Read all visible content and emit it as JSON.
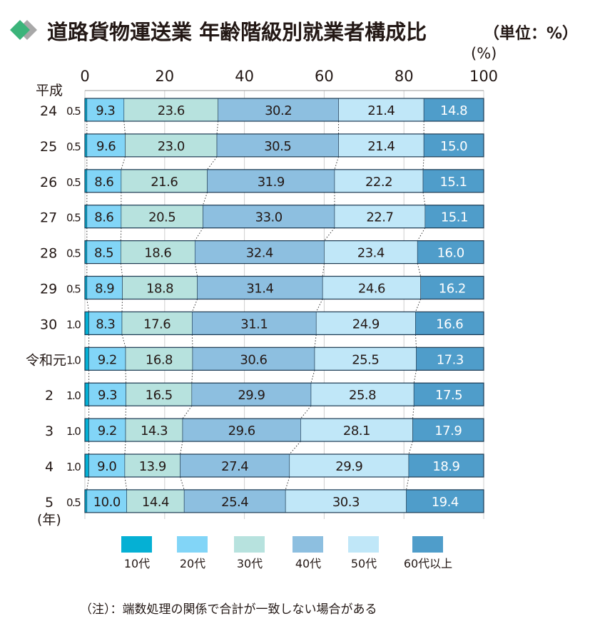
{
  "chart_data": {
    "type": "bar",
    "orientation": "horizontal-stacked-100",
    "title": "道路貨物運送業 年齢階級別就業者構成比",
    "unit_label": "（単位：%）",
    "x_unit": "(%)",
    "era_label": "平成",
    "year_suffix": "(年)",
    "xlim": [
      0,
      100
    ],
    "xticks": [
      "0",
      "20",
      "40",
      "60",
      "80",
      "100"
    ],
    "categories": [
      "24",
      "25",
      "26",
      "27",
      "28",
      "29",
      "30",
      "令和元",
      "2",
      "3",
      "4",
      "5"
    ],
    "series": [
      {
        "name": "10代",
        "color": "#05b0d4",
        "values": [
          0.5,
          0.5,
          0.5,
          0.5,
          0.5,
          0.5,
          1.0,
          1.0,
          1.0,
          1.0,
          1.0,
          0.5
        ]
      },
      {
        "name": "20代",
        "color": "#82d5f7",
        "values": [
          9.3,
          9.6,
          8.6,
          8.6,
          8.5,
          8.9,
          8.3,
          9.2,
          9.3,
          9.2,
          9.0,
          10.0
        ]
      },
      {
        "name": "30代",
        "color": "#b7e2de",
        "values": [
          23.6,
          23.0,
          21.6,
          20.5,
          18.6,
          18.8,
          17.6,
          16.8,
          16.5,
          14.3,
          13.9,
          14.4
        ]
      },
      {
        "name": "40代",
        "color": "#8dbfe0",
        "values": [
          30.2,
          30.5,
          31.9,
          33.0,
          32.4,
          31.4,
          31.1,
          30.6,
          29.9,
          29.6,
          27.4,
          25.4
        ]
      },
      {
        "name": "50代",
        "color": "#c0e7f8",
        "values": [
          21.4,
          21.4,
          22.2,
          22.7,
          23.4,
          24.6,
          24.9,
          25.5,
          25.8,
          28.1,
          29.9,
          30.3
        ]
      },
      {
        "name": "60代以上",
        "color": "#4f9dca",
        "values": [
          14.8,
          15.0,
          15.1,
          15.1,
          16.0,
          16.2,
          16.6,
          17.3,
          17.5,
          17.9,
          18.9,
          19.4
        ]
      }
    ],
    "teen_labels": [
      "0.5",
      "0.5",
      "0.5",
      "0.5",
      "0.5",
      "0.5",
      "1.0",
      "1.0",
      "1.0",
      "1.0",
      "1.0",
      "0.5"
    ],
    "legend_placement": "bottom",
    "note": "（注）：端数処理の関係で合計が一致しない場合がある"
  }
}
